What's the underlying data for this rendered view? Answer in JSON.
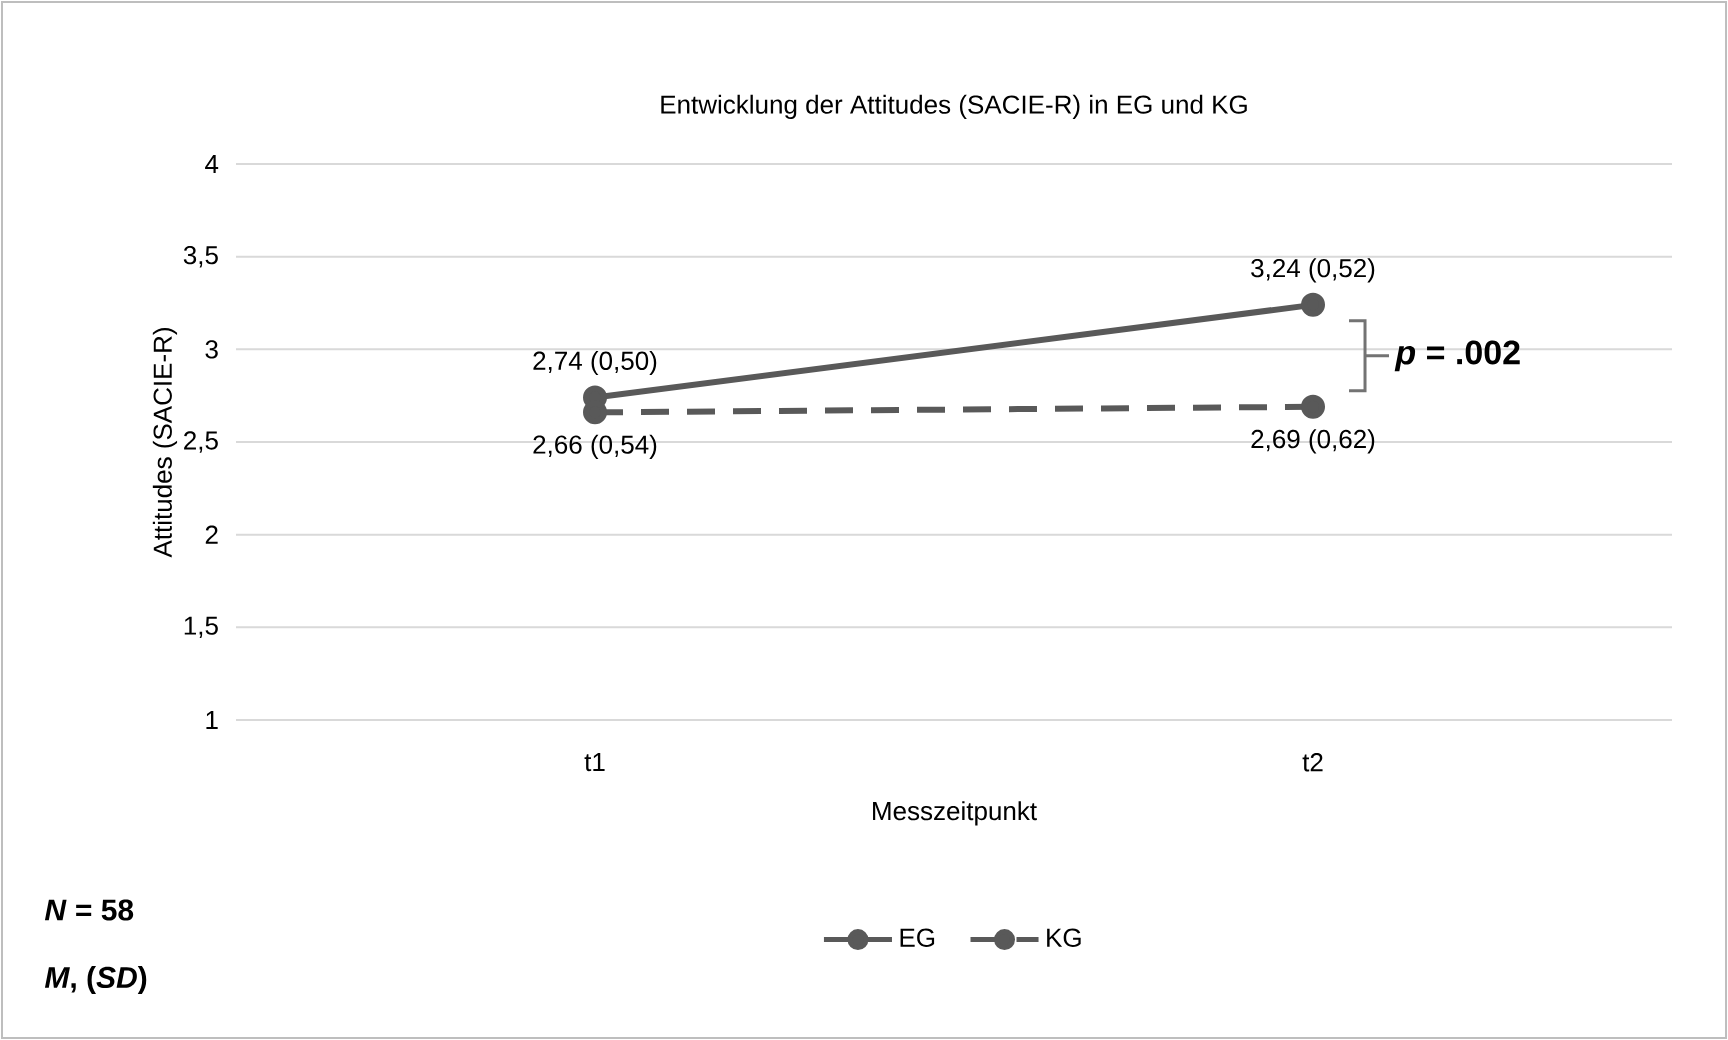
{
  "chart_data": {
    "type": "line",
    "title": "Entwicklung der Attitudes (SACIE-R) in EG und KG",
    "xlabel": "Messzeitpunkt",
    "ylabel": "Attitudes (SACIE-R)",
    "categories": [
      "t1",
      "t2"
    ],
    "series": [
      {
        "name": "EG",
        "color": "#595959",
        "values": [
          2.74,
          3.24
        ],
        "value_labels": [
          "2,74 (0,50)",
          "3,24 (0,52)"
        ],
        "line_style": "solid"
      },
      {
        "name": "KG",
        "color": "#595959",
        "values": [
          2.66,
          2.69
        ],
        "value_labels": [
          "2,66 (0,54)",
          "2,69 (0,62)"
        ],
        "line_style": "dashed"
      }
    ],
    "ylim": [
      1,
      4
    ],
    "yticks": [
      1,
      {
        "value": 1.5,
        "label": "1,5"
      },
      2,
      {
        "value": 2.5,
        "label": "2,5"
      },
      3,
      {
        "value": 3.5,
        "label": "3,5"
      },
      4
    ],
    "grid": "y",
    "legend": "bottom",
    "marker": "circle",
    "annotations": [
      "*p* = .002",
      "*N* = 58",
      "*M*, (*SD*)"
    ]
  }
}
